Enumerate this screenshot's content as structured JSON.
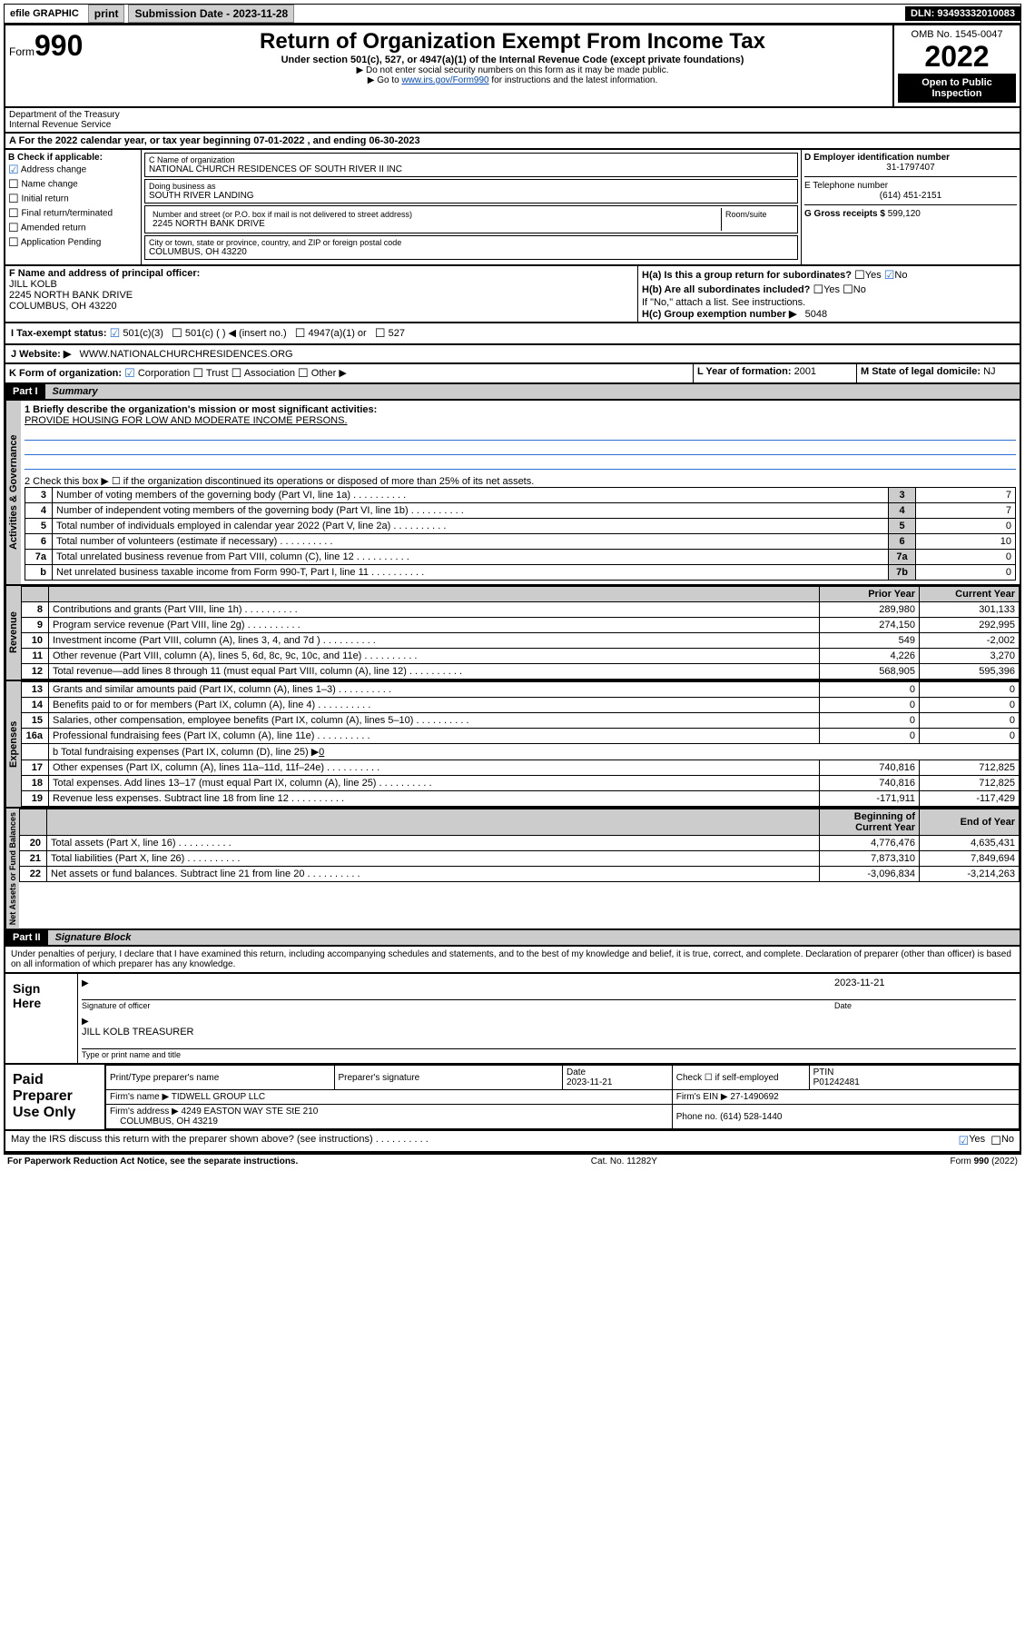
{
  "topbar": {
    "efile": "efile GRAPHIC",
    "print": "print",
    "sub_label": "Submission Date - 2023-11-28",
    "dln": "DLN: 93493332010083"
  },
  "header": {
    "form_label": "Form",
    "form_num": "990",
    "title": "Return of Organization Exempt From Income Tax",
    "sub1": "Under section 501(c), 527, or 4947(a)(1) of the Internal Revenue Code (except private foundations)",
    "sub2": "▶ Do not enter social security numbers on this form as it may be made public.",
    "sub3_pre": "▶ Go to ",
    "sub3_link": "www.irs.gov/Form990",
    "sub3_post": " for instructions and the latest information.",
    "omb": "OMB No. 1545-0047",
    "year": "2022",
    "open": "Open to Public Inspection",
    "dept": "Department of the Treasury",
    "irs": "Internal Revenue Service"
  },
  "sectionA": {
    "text_pre": "A For the 2022 calendar year, or tax year beginning ",
    "begin": "07-01-2022",
    "mid": " , and ending ",
    "end": "06-30-2023"
  },
  "boxB": {
    "title": "B Check if applicable:",
    "items": [
      {
        "label": "Address change",
        "checked": true
      },
      {
        "label": "Name change",
        "checked": false
      },
      {
        "label": "Initial return",
        "checked": false
      },
      {
        "label": "Final return/terminated",
        "checked": false
      },
      {
        "label": "Amended return",
        "checked": false
      },
      {
        "label": "Application Pending",
        "checked": false
      }
    ]
  },
  "boxC": {
    "name_label": "C Name of organization",
    "name": "NATIONAL CHURCH RESIDENCES OF SOUTH RIVER II INC",
    "dba_label": "Doing business as",
    "dba": "SOUTH RIVER LANDING",
    "addr_label": "Number and street (or P.O. box if mail is not delivered to street address)",
    "room_label": "Room/suite",
    "addr": "2245 NORTH BANK DRIVE",
    "city_label": "City or town, state or province, country, and ZIP or foreign postal code",
    "city": "COLUMBUS, OH  43220"
  },
  "boxD": {
    "label": "D Employer identification number",
    "val": "31-1797407"
  },
  "boxE": {
    "label": "E Telephone number",
    "val": "(614) 451-2151"
  },
  "boxG": {
    "label": "G Gross receipts $",
    "val": "599,120"
  },
  "boxF": {
    "label": "F Name and address of principal officer:",
    "name": "JILL KOLB",
    "addr1": "2245 NORTH BANK DRIVE",
    "addr2": "COLUMBUS, OH  43220"
  },
  "boxH": {
    "ha": "H(a)  Is this a group return for subordinates?",
    "ha_yes": "Yes",
    "ha_no": "No",
    "hb": "H(b)  Are all subordinates included?",
    "hb_yes": "Yes",
    "hb_no": "No",
    "hb_note": "If \"No,\" attach a list. See instructions.",
    "hc": "H(c)  Group exemption number ▶",
    "hc_val": "5048"
  },
  "boxI": {
    "label": "I  Tax-exempt status:",
    "c3": "501(c)(3)",
    "c": "501(c) (  ) ◀ (insert no.)",
    "a1": "4947(a)(1) or",
    "s527": "527"
  },
  "boxJ": {
    "label": "J   Website: ▶",
    "val": "WWW.NATIONALCHURCHRESIDENCES.ORG"
  },
  "boxK": {
    "label": "K Form of organization:",
    "corp": "Corporation",
    "trust": "Trust",
    "assoc": "Association",
    "other": "Other ▶"
  },
  "boxL": {
    "label": "L Year of formation:",
    "val": "2001"
  },
  "boxM": {
    "label": "M State of legal domicile:",
    "val": "NJ"
  },
  "part1": {
    "header": "Part I",
    "title": "Summary",
    "line1_label": "1  Briefly describe the organization's mission or most significant activities:",
    "line1_val": "PROVIDE HOUSING FOR LOW AND MODERATE INCOME PERSONS.",
    "line2": "2   Check this box ▶ ☐  if the organization discontinued its operations or disposed of more than 25% of its net assets.",
    "governance_label": "Activities & Governance",
    "gov_rows": [
      {
        "n": "3",
        "text": "Number of voting members of the governing body (Part VI, line 1a)",
        "box": "3",
        "val": "7"
      },
      {
        "n": "4",
        "text": "Number of independent voting members of the governing body (Part VI, line 1b)",
        "box": "4",
        "val": "7"
      },
      {
        "n": "5",
        "text": "Total number of individuals employed in calendar year 2022 (Part V, line 2a)",
        "box": "5",
        "val": "0"
      },
      {
        "n": "6",
        "text": "Total number of volunteers (estimate if necessary)",
        "box": "6",
        "val": "10"
      },
      {
        "n": "7a",
        "text": "Total unrelated business revenue from Part VIII, column (C), line 12",
        "box": "7a",
        "val": "0"
      },
      {
        "n": "b",
        "text": "Net unrelated business taxable income from Form 990-T, Part I, line 11",
        "box": "7b",
        "val": "0"
      }
    ],
    "col_prior": "Prior Year",
    "col_current": "Current Year",
    "revenue_label": "Revenue",
    "rev_rows": [
      {
        "n": "8",
        "text": "Contributions and grants (Part VIII, line 1h)",
        "py": "289,980",
        "cy": "301,133"
      },
      {
        "n": "9",
        "text": "Program service revenue (Part VIII, line 2g)",
        "py": "274,150",
        "cy": "292,995"
      },
      {
        "n": "10",
        "text": "Investment income (Part VIII, column (A), lines 3, 4, and 7d )",
        "py": "549",
        "cy": "-2,002"
      },
      {
        "n": "11",
        "text": "Other revenue (Part VIII, column (A), lines 5, 6d, 8c, 9c, 10c, and 11e)",
        "py": "4,226",
        "cy": "3,270"
      },
      {
        "n": "12",
        "text": "Total revenue—add lines 8 through 11 (must equal Part VIII, column (A), line 12)",
        "py": "568,905",
        "cy": "595,396"
      }
    ],
    "expenses_label": "Expenses",
    "exp_rows": [
      {
        "n": "13",
        "text": "Grants and similar amounts paid (Part IX, column (A), lines 1–3)",
        "py": "0",
        "cy": "0"
      },
      {
        "n": "14",
        "text": "Benefits paid to or for members (Part IX, column (A), line 4)",
        "py": "0",
        "cy": "0"
      },
      {
        "n": "15",
        "text": "Salaries, other compensation, employee benefits (Part IX, column (A), lines 5–10)",
        "py": "0",
        "cy": "0"
      },
      {
        "n": "16a",
        "text": "Professional fundraising fees (Part IX, column (A), line 11e)",
        "py": "0",
        "cy": "0"
      }
    ],
    "line16b_pre": "b   Total fundraising expenses (Part IX, column (D), line 25) ▶",
    "line16b_val": "0",
    "exp_rows2": [
      {
        "n": "17",
        "text": "Other expenses (Part IX, column (A), lines 11a–11d, 11f–24e)",
        "py": "740,816",
        "cy": "712,825"
      },
      {
        "n": "18",
        "text": "Total expenses. Add lines 13–17 (must equal Part IX, column (A), line 25)",
        "py": "740,816",
        "cy": "712,825"
      },
      {
        "n": "19",
        "text": "Revenue less expenses. Subtract line 18 from line 12",
        "py": "-171,911",
        "cy": "-117,429"
      }
    ],
    "net_label": "Net Assets or Fund Balances",
    "col_begin": "Beginning of Current Year",
    "col_end": "End of Year",
    "net_rows": [
      {
        "n": "20",
        "text": "Total assets (Part X, line 16)",
        "py": "4,776,476",
        "cy": "4,635,431"
      },
      {
        "n": "21",
        "text": "Total liabilities (Part X, line 26)",
        "py": "7,873,310",
        "cy": "7,849,694"
      },
      {
        "n": "22",
        "text": "Net assets or fund balances. Subtract line 21 from line 20",
        "py": "-3,096,834",
        "cy": "-3,214,263"
      }
    ]
  },
  "part2": {
    "header": "Part II",
    "title": "Signature Block",
    "decl": "Under penalties of perjury, I declare that I have examined this return, including accompanying schedules and statements, and to the best of my knowledge and belief, it is true, correct, and complete. Declaration of preparer (other than officer) is based on all information of which preparer has any knowledge.",
    "sign_here": "Sign Here",
    "sig_officer": "Signature of officer",
    "sig_date": "Date",
    "sig_date_val": "2023-11-21",
    "officer_name": "JILL KOLB  TREASURER",
    "officer_sub": "Type or print name and title",
    "paid": "Paid Preparer Use Only",
    "prep_name_label": "Print/Type preparer's name",
    "prep_sig_label": "Preparer's signature",
    "prep_date_label": "Date",
    "prep_date": "2023-11-21",
    "check_self": "Check ☐ if self-employed",
    "ptin_label": "PTIN",
    "ptin": "P01242481",
    "firm_name_label": "Firm's name    ▶",
    "firm_name": "TIDWELL GROUP LLC",
    "firm_ein_label": "Firm's EIN ▶",
    "firm_ein": "27-1490692",
    "firm_addr_label": "Firm's address ▶",
    "firm_addr1": "4249 EASTON WAY STE StE 210",
    "firm_addr2": "COLUMBUS, OH  43219",
    "firm_phone_label": "Phone no.",
    "firm_phone": "(614) 528-1440",
    "discuss": "May the IRS discuss this return with the preparer shown above? (see instructions)",
    "yes": "Yes",
    "no": "No"
  },
  "footer": {
    "left": "For Paperwork Reduction Act Notice, see the separate instructions.",
    "mid": "Cat. No. 11282Y",
    "right": "Form 990 (2022)"
  }
}
